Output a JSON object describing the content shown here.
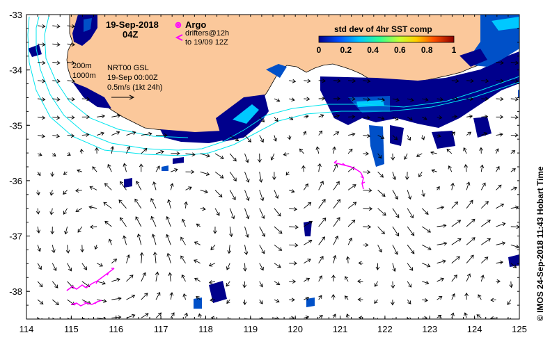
{
  "map": {
    "date_line1": "19-Sep-2018",
    "date_line2": "04Z",
    "legend_argo": "Argo",
    "legend_drifters_1": "drifters@12h",
    "legend_drifters_2": "to 19/09 12Z",
    "colorbar_title": "std dev of 4hr SST comp",
    "colorbar_ticks": [
      "0",
      "0.2",
      "0.4",
      "0.6",
      "0.8",
      "1"
    ],
    "contour_200": "200m",
    "contour_1000": "1000m",
    "gsl_title": "NRT00 GSL",
    "gsl_date": "19-Sep 00:00Z",
    "speed_scale": "0.5m/s (1kt 24h)",
    "side_credit": "© IMOS 24-Sep-2018 11:43 Hobart Time",
    "x_ticks": [
      "114",
      "115",
      "116",
      "117",
      "118",
      "119",
      "120",
      "121",
      "122",
      "123",
      "124",
      "125"
    ],
    "y_ticks": [
      "-33",
      "-34",
      "-35",
      "-36",
      "-37",
      "-38"
    ],
    "colors": {
      "land": "#fbc89b",
      "contour": "#00e5ee",
      "drifter": "#ff00ff",
      "sst_dark": "#00008c",
      "sst_mid": "#0050c8",
      "sst_light": "#00c8ff"
    },
    "extent": {
      "lon": [
        114,
        125
      ],
      "lat": [
        -38.5,
        -33
      ]
    }
  }
}
